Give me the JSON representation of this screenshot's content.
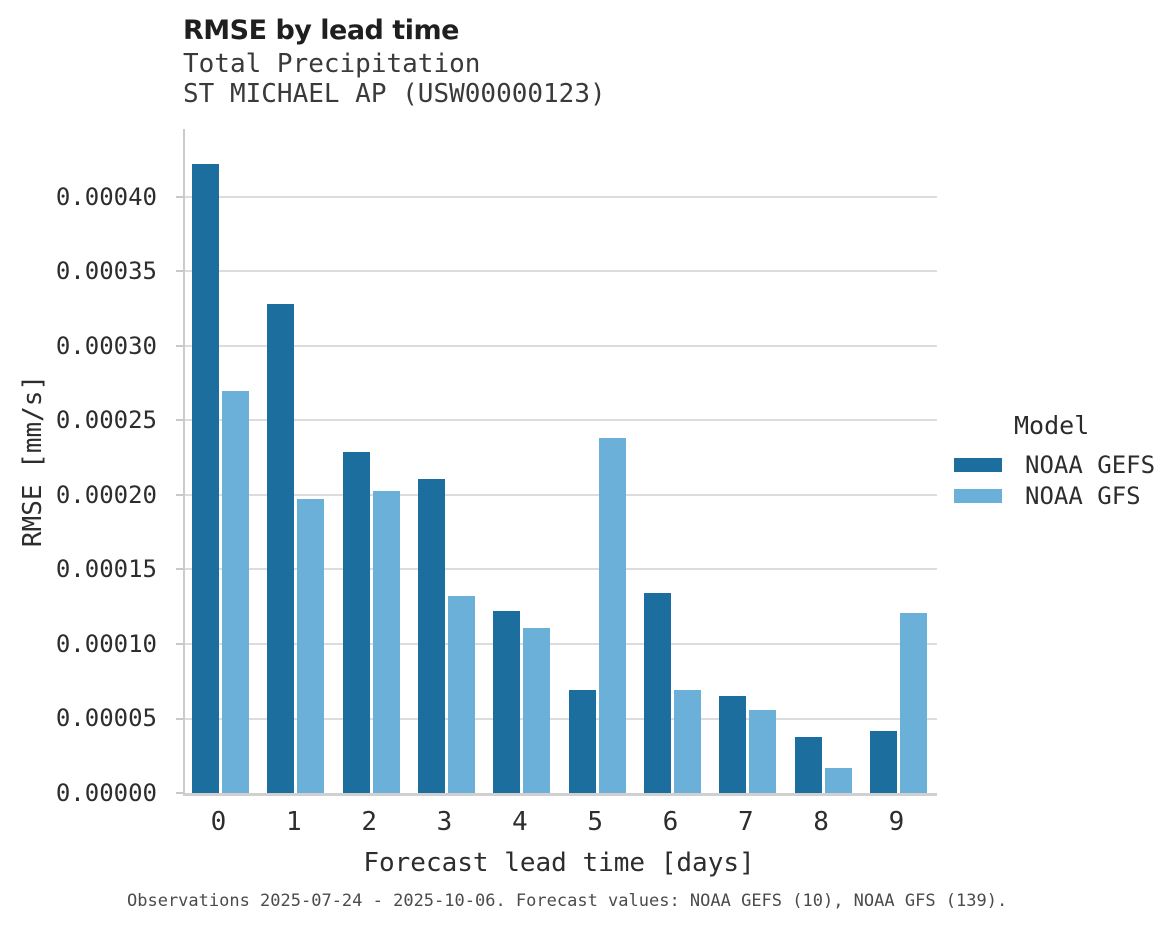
{
  "header": {
    "title": "RMSE by lead time",
    "subtitle_variable": "Total Precipitation",
    "subtitle_station": "ST MICHAEL AP (USW00000123)"
  },
  "chart_data": {
    "type": "bar",
    "title": "RMSE by lead time",
    "subtitle": [
      "Total Precipitation",
      "ST MICHAEL AP (USW00000123)"
    ],
    "categories": [
      "0",
      "1",
      "2",
      "3",
      "4",
      "5",
      "6",
      "7",
      "8",
      "9"
    ],
    "series": [
      {
        "name": "NOAA GEFS",
        "color": "#1C6E9E",
        "values": [
          0.000422,
          0.000328,
          0.000229,
          0.000211,
          0.000122,
          6.9e-05,
          0.000134,
          6.5e-05,
          3.75e-05,
          4.15e-05
        ]
      },
      {
        "name": "NOAA GFS",
        "color": "#6BB0D9",
        "values": [
          0.00027,
          0.000197,
          0.000203,
          0.000132,
          0.000111,
          0.000238,
          6.9e-05,
          5.55e-05,
          1.65e-05,
          0.000121
        ]
      }
    ],
    "xlabel": "Forecast lead time [days]",
    "ylabel": "RMSE [mm/s]",
    "ylim": [
      0,
      0.0004456
    ],
    "yticks": [
      0.0,
      5e-05,
      0.0001,
      0.00015,
      0.0002,
      0.00025,
      0.0003,
      0.00035,
      0.0004
    ],
    "ytick_decimals": 5,
    "grid": "horizontal",
    "legend_title": "Model",
    "legend_position": "right"
  },
  "footer": {
    "caption": "Observations 2025-07-24 - 2025-10-06. Forecast values: NOAA GEFS (10), NOAA GFS (139)."
  },
  "colors": {
    "gefs_bar": "#1C6E9E",
    "gfs_bar": "#6BB0D9",
    "gridline": "#dcdcdc",
    "axis_spine": "#cbcbcb",
    "title_text": "#1f1f1f",
    "body_text": "#2d2d2d",
    "caption_text": "#4b4b4b"
  }
}
